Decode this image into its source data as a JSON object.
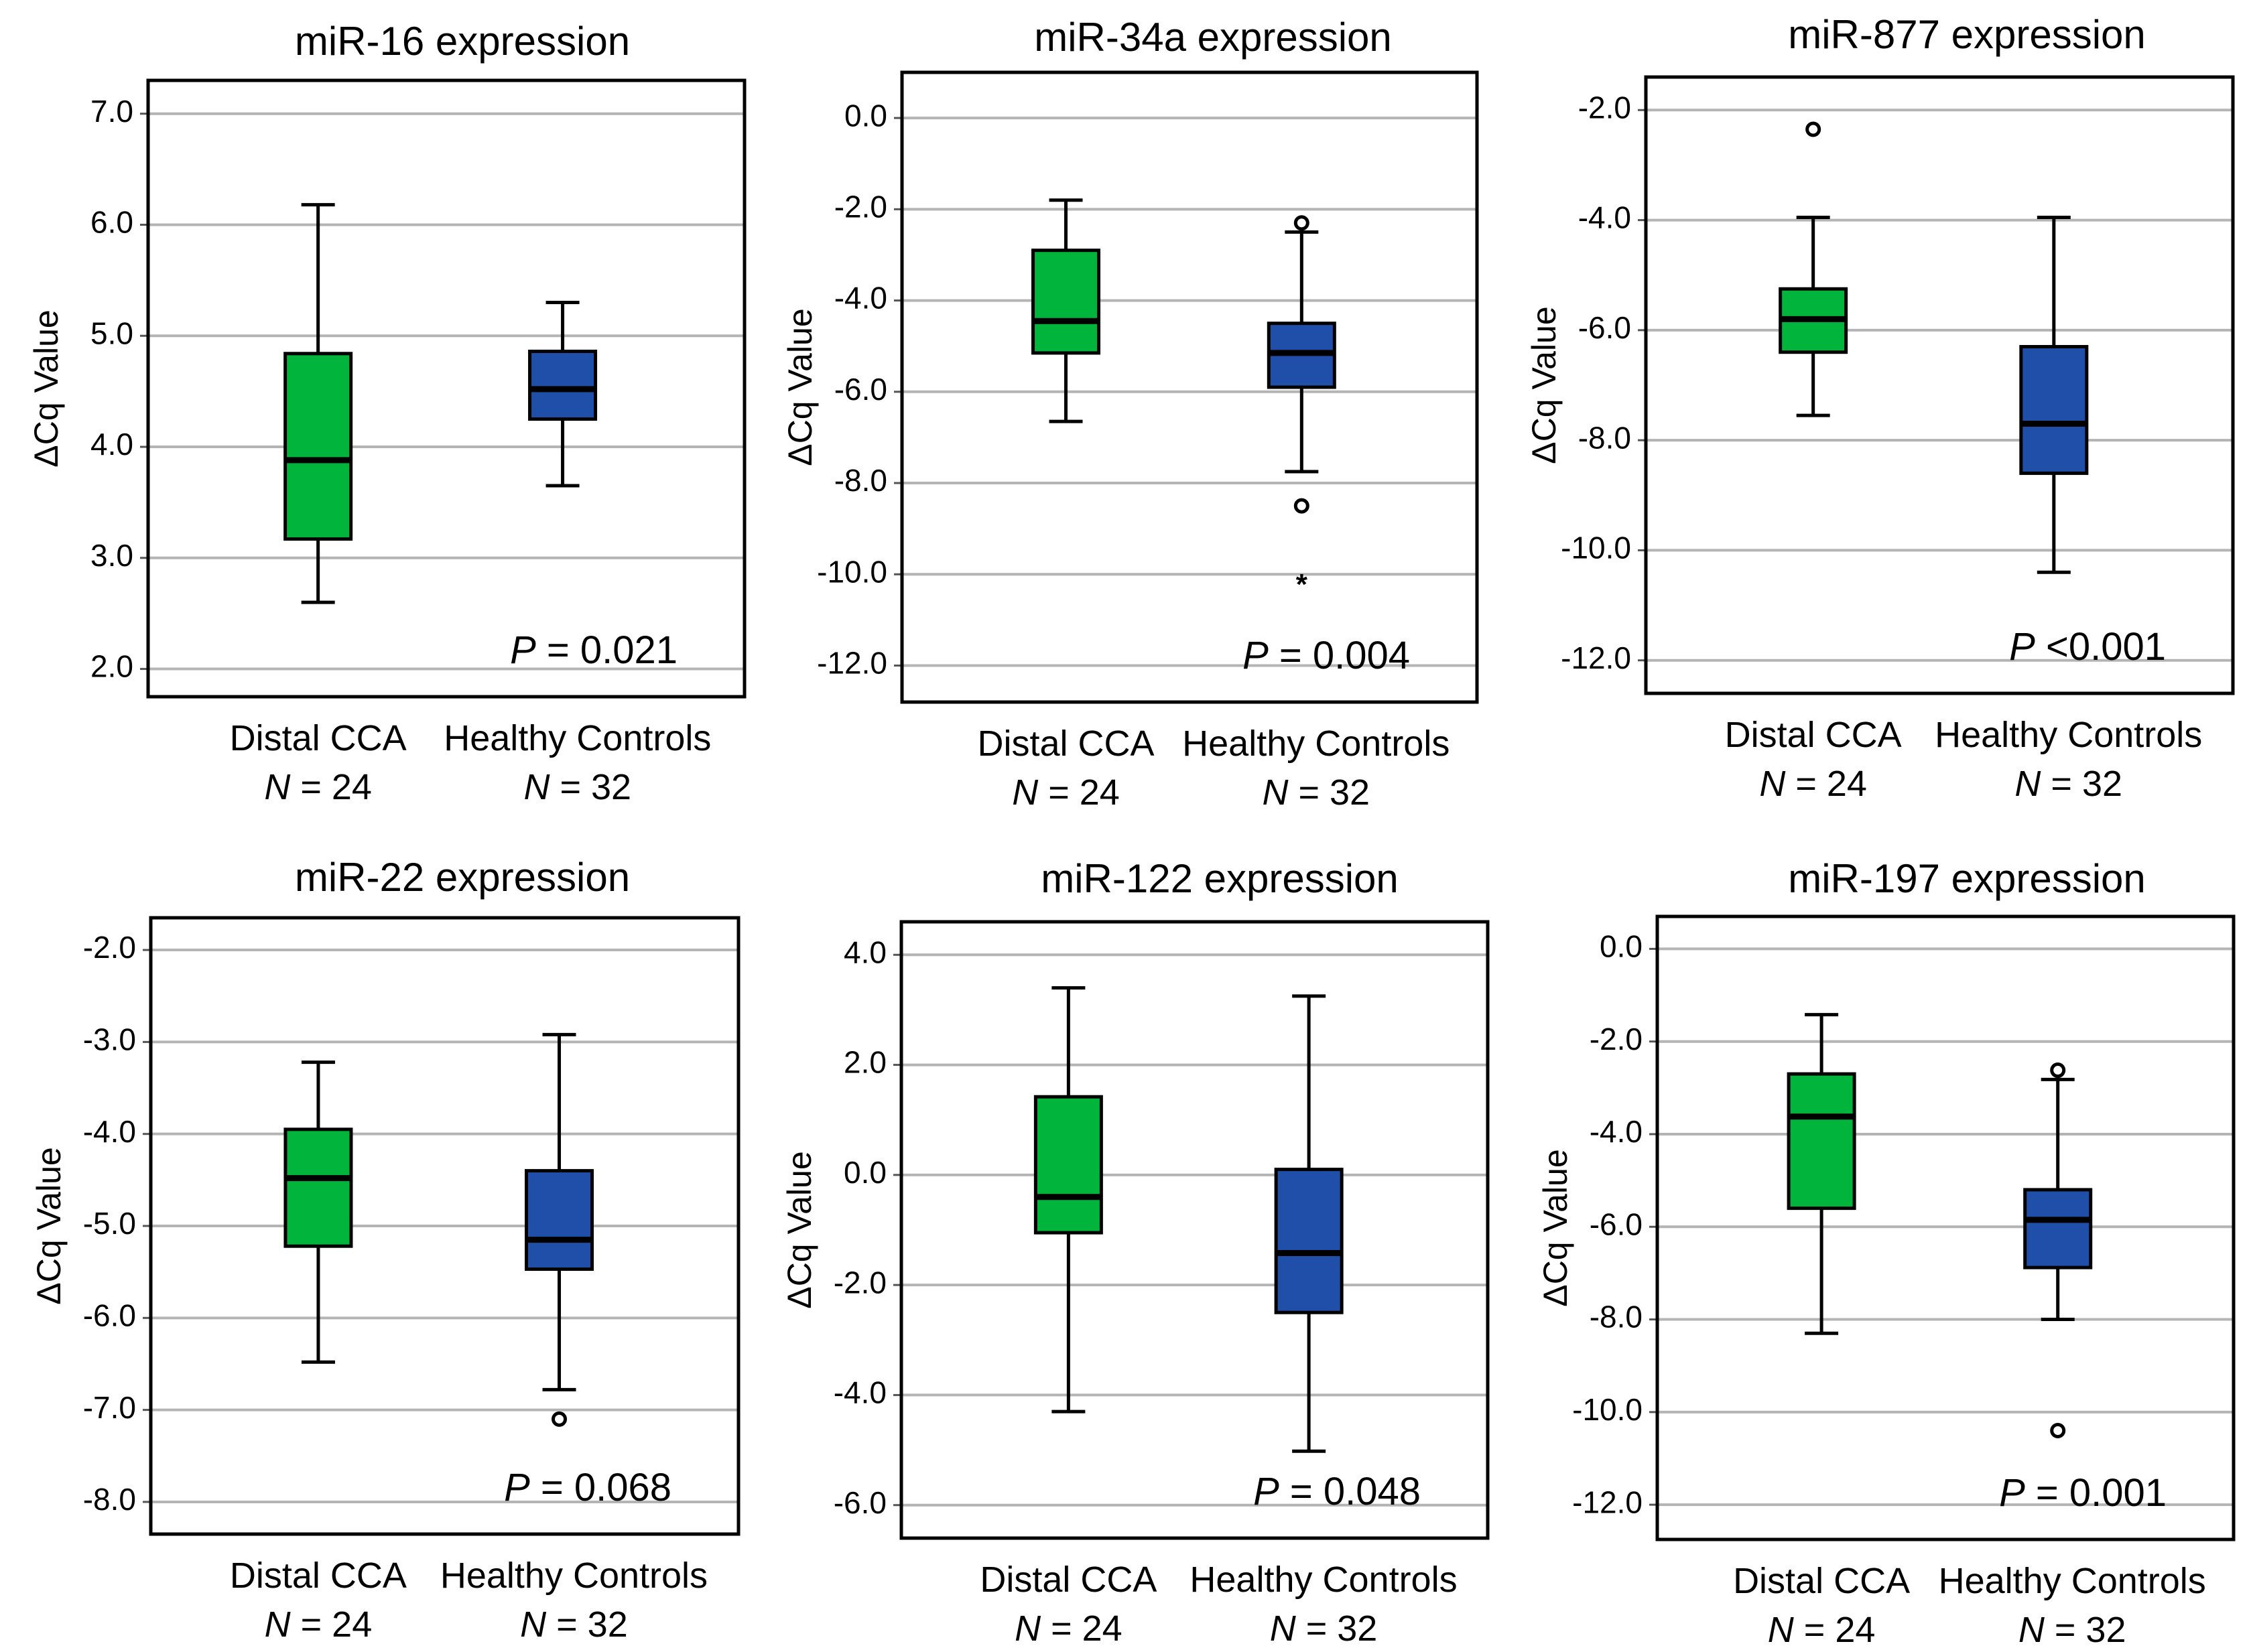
{
  "colors": {
    "distal": "#00b43c",
    "healthy": "#1f4fa8",
    "grid": "#b4b4b4",
    "frame": "#000000"
  },
  "chart_data": [
    {
      "type": "box",
      "title": "miR-16 expression",
      "ylabel": "ΔCq Value",
      "ylim": [
        1.75,
        7.3
      ],
      "yticks": [
        7.0,
        6.0,
        5.0,
        4.0,
        3.0,
        2.0
      ],
      "ytick_labels": [
        "7.0",
        "6.0",
        "5.0",
        "4.0",
        "3.0",
        "2.0"
      ],
      "p_label": "P",
      "p_text": " = 0.021",
      "groups": [
        {
          "name": "Distal CCA",
          "n_label": "N",
          "n_text": " = 24",
          "color": "distal",
          "whisker_high": 6.18,
          "q3": 4.84,
          "median": 3.88,
          "q1": 3.17,
          "whisker_low": 2.6,
          "outliers": [],
          "extremes": []
        },
        {
          "name": "Healthy Controls",
          "n_label": "N",
          "n_text": " = 32",
          "color": "healthy",
          "whisker_high": 5.3,
          "q3": 4.86,
          "median": 4.52,
          "q1": 4.25,
          "whisker_low": 3.65,
          "outliers": [],
          "extremes": []
        }
      ]
    },
    {
      "type": "box",
      "title": "miR-34a expression",
      "ylabel": "ΔCq Value",
      "ylim": [
        -12.8,
        1.0
      ],
      "yticks": [
        0.0,
        -2.0,
        -4.0,
        -6.0,
        -8.0,
        -10.0,
        -12.0
      ],
      "ytick_labels": [
        "0.0",
        "-2.0",
        "-4.0",
        "-6.0",
        "-8.0",
        "-10.0",
        "-12.0"
      ],
      "p_label": "P",
      "p_text": " = 0.004",
      "groups": [
        {
          "name": "Distal CCA",
          "n_label": "N",
          "n_text": " = 24",
          "color": "distal",
          "whisker_high": -1.8,
          "q3": -2.9,
          "median": -4.45,
          "q1": -5.15,
          "whisker_low": -6.65,
          "outliers": [],
          "extremes": []
        },
        {
          "name": "Healthy Controls",
          "n_label": "N",
          "n_text": " = 32",
          "color": "healthy",
          "whisker_high": -2.5,
          "q3": -4.5,
          "median": -5.15,
          "q1": -5.9,
          "whisker_low": -7.75,
          "outliers": [
            -2.3,
            -8.5
          ],
          "extremes": [
            -10.2
          ]
        }
      ]
    },
    {
      "type": "box",
      "title": "miR-877 expression",
      "ylabel": "ΔCq Value",
      "ylim": [
        -12.6,
        -1.4
      ],
      "yticks": [
        -2.0,
        -4.0,
        -6.0,
        -8.0,
        -10.0,
        -12.0
      ],
      "ytick_labels": [
        "-2.0",
        "-4.0",
        "-6.0",
        "-8.0",
        "-10.0",
        "-12.0"
      ],
      "p_label": "P",
      "p_text": " <0.001",
      "groups": [
        {
          "name": "Distal CCA",
          "n_label": "N",
          "n_text": " = 24",
          "color": "distal",
          "whisker_high": -3.95,
          "q3": -5.25,
          "median": -5.8,
          "q1": -6.4,
          "whisker_low": -7.55,
          "outliers": [
            -2.35
          ],
          "extremes": []
        },
        {
          "name": "Healthy Controls",
          "n_label": "N",
          "n_text": " = 32",
          "color": "healthy",
          "whisker_high": -3.95,
          "q3": -6.3,
          "median": -7.7,
          "q1": -8.6,
          "whisker_low": -10.4,
          "outliers": [],
          "extremes": []
        }
      ]
    },
    {
      "type": "box",
      "title": "miR-22 expression",
      "ylabel": "ΔCq Value",
      "ylim": [
        -8.35,
        -1.65
      ],
      "yticks": [
        -2.0,
        -3.0,
        -4.0,
        -5.0,
        -6.0,
        -7.0,
        -8.0
      ],
      "ytick_labels": [
        "-2.0",
        "-3.0",
        "-4.0",
        "-5.0",
        "-6.0",
        "-7.0",
        "-8.0"
      ],
      "p_label": "P",
      "p_text": " = 0.068",
      "groups": [
        {
          "name": "Distal CCA",
          "n_label": "N",
          "n_text": " = 24",
          "color": "distal",
          "whisker_high": -3.22,
          "q3": -3.95,
          "median": -4.48,
          "q1": -5.22,
          "whisker_low": -6.48,
          "outliers": [],
          "extremes": []
        },
        {
          "name": "Healthy Controls",
          "n_label": "N",
          "n_text": " = 32",
          "color": "healthy",
          "whisker_high": -2.92,
          "q3": -4.4,
          "median": -5.15,
          "q1": -5.47,
          "whisker_low": -6.78,
          "outliers": [
            -7.1
          ],
          "extremes": []
        }
      ]
    },
    {
      "type": "box",
      "title": "miR-122 expression",
      "ylabel": "ΔCq Value",
      "ylim": [
        -6.6,
        4.6
      ],
      "yticks": [
        4.0,
        2.0,
        0.0,
        -2.0,
        -4.0,
        -6.0
      ],
      "ytick_labels": [
        "4.0",
        "2.0",
        "0.0",
        "-2.0",
        "-4.0",
        "-6.0"
      ],
      "p_label": "P",
      "p_text": " = 0.048",
      "groups": [
        {
          "name": "Distal CCA",
          "n_label": "N",
          "n_text": " = 24",
          "color": "distal",
          "whisker_high": 3.4,
          "q3": 1.42,
          "median": -0.4,
          "q1": -1.05,
          "whisker_low": -4.3,
          "outliers": [],
          "extremes": []
        },
        {
          "name": "Healthy Controls",
          "n_label": "N",
          "n_text": " = 32",
          "color": "healthy",
          "whisker_high": 3.25,
          "q3": 0.1,
          "median": -1.42,
          "q1": -2.5,
          "whisker_low": -5.02,
          "outliers": [],
          "extremes": []
        }
      ]
    },
    {
      "type": "box",
      "title": "miR-197 expression",
      "ylabel": "ΔCq Value",
      "ylim": [
        -12.75,
        0.7
      ],
      "yticks": [
        0.0,
        -2.0,
        -4.0,
        -6.0,
        -8.0,
        -10.0,
        -12.0
      ],
      "ytick_labels": [
        "0.0",
        "-2.0",
        "-4.0",
        "-6.0",
        "-8.0",
        "-10.0",
        "-12.0"
      ],
      "p_label": "P",
      "p_text": " = 0.001",
      "groups": [
        {
          "name": "Distal CCA",
          "n_label": "N",
          "n_text": " = 24",
          "color": "distal",
          "whisker_high": -1.42,
          "q3": -2.7,
          "median": -3.62,
          "q1": -5.6,
          "whisker_low": -8.3,
          "outliers": [],
          "extremes": []
        },
        {
          "name": "Healthy Controls",
          "n_label": "N",
          "n_text": " = 32",
          "color": "healthy",
          "whisker_high": -2.82,
          "q3": -5.2,
          "median": -5.85,
          "q1": -6.88,
          "whisker_low": -8.0,
          "outliers": [
            -2.62,
            -10.4
          ],
          "extremes": []
        }
      ]
    }
  ]
}
